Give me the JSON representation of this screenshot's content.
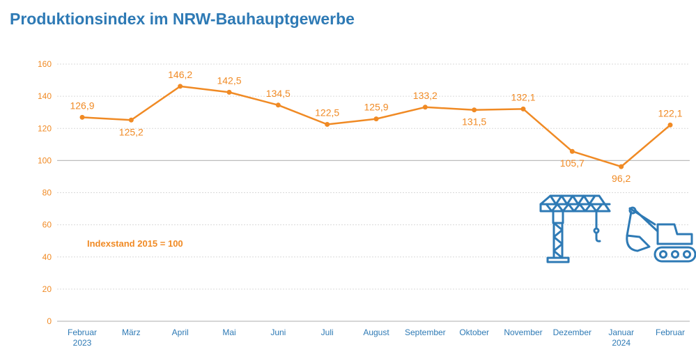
{
  "title": "Produktionsindex im NRW-Bauhauptgewerbe",
  "note": "Indexstand 2015 = 100",
  "colors": {
    "line": "#f08a24",
    "title": "#2e7ab5",
    "axis_text": "#f08a24",
    "x_text": "#2e7ab5",
    "grid": "#d9d9d9",
    "icons": "#2e7ab5"
  },
  "icons": [
    "crane-icon",
    "excavator-icon"
  ],
  "chart_data": {
    "type": "line",
    "title": "Produktionsindex im NRW-Bauhauptgewerbe",
    "xlabel": "",
    "ylabel": "",
    "ylim": [
      0,
      160
    ],
    "yticks": [
      0,
      20,
      40,
      60,
      80,
      100,
      120,
      140,
      160
    ],
    "grid": true,
    "categories": [
      "Februar 2023",
      "März",
      "April",
      "Mai",
      "Juni",
      "Juli",
      "August",
      "September",
      "Oktober",
      "November",
      "Dezember",
      "Januar 2024",
      "Februar"
    ],
    "category_lines": [
      [
        "Februar",
        "2023"
      ],
      [
        "März"
      ],
      [
        "April"
      ],
      [
        "Mai"
      ],
      [
        "Juni"
      ],
      [
        "Juli"
      ],
      [
        "August"
      ],
      [
        "September"
      ],
      [
        "Oktober"
      ],
      [
        "November"
      ],
      [
        "Dezember"
      ],
      [
        "Januar",
        "2024"
      ],
      [
        "Februar"
      ]
    ],
    "values": [
      126.9,
      125.2,
      146.2,
      142.5,
      134.5,
      122.5,
      125.9,
      133.2,
      131.5,
      132.1,
      105.7,
      96.2,
      122.1
    ],
    "value_labels": [
      "126,9",
      "125,2",
      "146,2",
      "142,5",
      "134,5",
      "122,5",
      "125,9",
      "133,2",
      "131,5",
      "132,1",
      "105,7",
      "96,2",
      "122,1"
    ],
    "reference_line": 100
  }
}
